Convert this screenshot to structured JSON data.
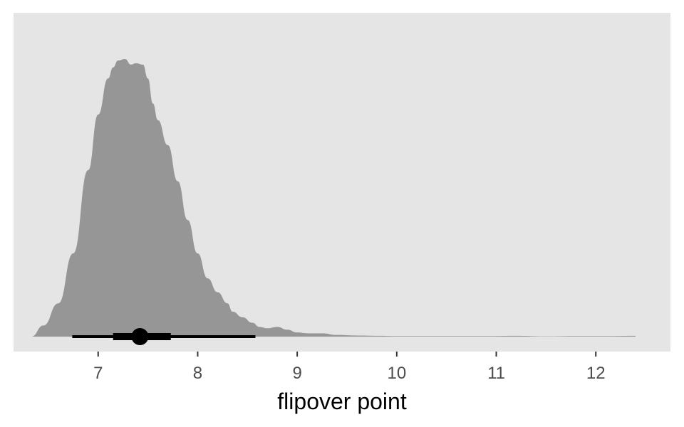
{
  "chart_data": {
    "type": "area",
    "subtype": "density with point-interval",
    "title": "",
    "xlabel": "flipover point",
    "ylabel": "",
    "xlim": [
      6.15,
      12.75
    ],
    "x_ticks": [
      "7",
      "8",
      "9",
      "10",
      "11",
      "12"
    ],
    "y_ticks": [],
    "grid": false,
    "panel_background": "#e5e5e5",
    "density_color": "#969696",
    "interval_color": "#000000",
    "density_curve": {
      "x": [
        6.33,
        6.45,
        6.6,
        6.75,
        6.9,
        7.0,
        7.1,
        7.15,
        7.2,
        7.27,
        7.33,
        7.38,
        7.45,
        7.5,
        7.55,
        7.6,
        7.7,
        7.8,
        7.9,
        8.0,
        8.1,
        8.2,
        8.3,
        8.35,
        8.45,
        8.55,
        8.62,
        8.7,
        8.8,
        8.9,
        9.0,
        9.1,
        9.25,
        9.4,
        9.6,
        9.8,
        10.0,
        10.3,
        10.6,
        10.9,
        11.2,
        11.5,
        11.8,
        12.1,
        12.4
      ],
      "y": [
        0.0,
        0.04,
        0.12,
        0.3,
        0.6,
        0.8,
        0.93,
        0.97,
        0.995,
        1.0,
        0.98,
        0.985,
        0.98,
        0.93,
        0.84,
        0.78,
        0.69,
        0.56,
        0.42,
        0.3,
        0.21,
        0.16,
        0.12,
        0.09,
        0.07,
        0.05,
        0.035,
        0.03,
        0.035,
        0.025,
        0.015,
        0.012,
        0.012,
        0.006,
        0.004,
        0.003,
        0.002,
        0.002,
        0.002,
        0.002,
        0.003,
        0.001,
        0.002,
        0.002,
        0.003
      ]
    },
    "point_interval": {
      "point": 7.42,
      "inner_interval": [
        7.15,
        7.73
      ],
      "outer_interval": [
        6.74,
        8.58
      ]
    }
  }
}
